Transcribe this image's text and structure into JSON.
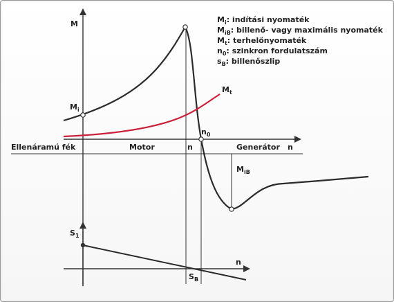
{
  "legend": [
    {
      "sym": "M",
      "sub": "i",
      "text": ": indítási nyomaték"
    },
    {
      "sym": "M",
      "sub": "iB",
      "text": ": billenő- vagy maximális nyomaték"
    },
    {
      "sym": "M",
      "sub": "t",
      "text": ": terhelőnyomaték"
    },
    {
      "sym": "n",
      "sub": "0",
      "text": ": szinkron fordulatszám"
    },
    {
      "sym": "s",
      "sub": "B",
      "text": ": billenőszlip"
    }
  ],
  "labels": {
    "y_axis": "M",
    "mi": {
      "sym": "M",
      "sub": "i"
    },
    "mt": {
      "sym": "M",
      "sub": "t"
    },
    "n0": {
      "sym": "n",
      "sub": "0"
    },
    "mib": {
      "sym": "M",
      "sub": "iB"
    },
    "n_x": "n",
    "n_mark": "n",
    "n_lower": "n",
    "s1": {
      "sym": "S",
      "sub": "1"
    },
    "sb": {
      "sym": "S",
      "sub": "B"
    }
  },
  "regions": {
    "brake": "Ellenáramú fék",
    "motor": "Motor",
    "generator": "Generátor"
  },
  "colors": {
    "curve": "#2b2b2b",
    "load": "#cc1f3a",
    "axis": "#333333"
  }
}
